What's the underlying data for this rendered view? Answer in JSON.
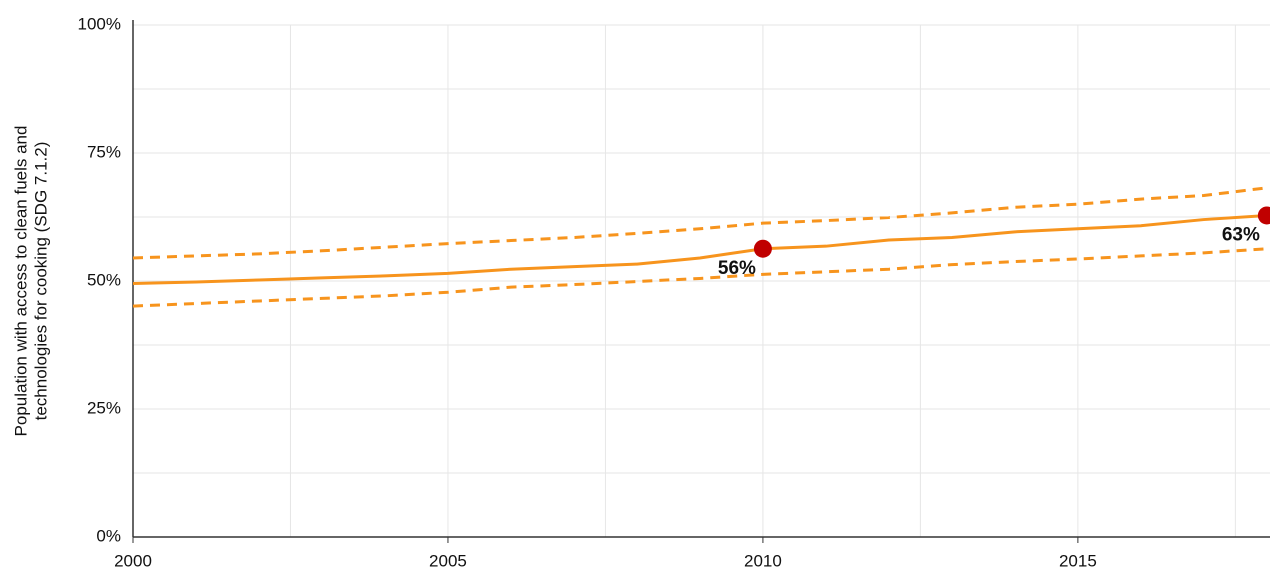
{
  "chart_data": {
    "type": "line",
    "y_label": [
      "Population with access to clean fuels and",
      "technologies for cooking (SDG 7.1.2)"
    ],
    "x": [
      2000,
      2001,
      2002,
      2003,
      2004,
      2005,
      2006,
      2007,
      2008,
      2009,
      2010,
      2011,
      2012,
      2013,
      2014,
      2015,
      2016,
      2017,
      2018
    ],
    "series": [
      {
        "color": "#f7941d",
        "dash": false,
        "values": [
          49.5,
          49.8,
          50.2,
          50.6,
          51.0,
          51.5,
          52.3,
          52.8,
          53.3,
          54.5,
          56.3,
          56.8,
          58.0,
          58.5,
          59.6,
          60.2,
          60.8,
          62.0,
          62.8
        ]
      },
      {
        "color": "#f7941d",
        "dash": true,
        "values": [
          54.5,
          54.9,
          55.3,
          55.9,
          56.6,
          57.3,
          57.9,
          58.5,
          59.3,
          60.2,
          61.3,
          61.8,
          62.4,
          63.3,
          64.4,
          65.0,
          66.0,
          66.7,
          68.2
        ]
      },
      {
        "color": "#f7941d",
        "dash": true,
        "values": [
          45.1,
          45.6,
          46.1,
          46.6,
          47.1,
          47.8,
          48.8,
          49.3,
          49.9,
          50.5,
          51.3,
          51.8,
          52.3,
          53.2,
          53.8,
          54.3,
          54.9,
          55.5,
          56.3
        ]
      }
    ],
    "highlights": [
      {
        "x": 2010,
        "value": 56.3,
        "label": "56%"
      },
      {
        "x": 2018,
        "value": 62.8,
        "label": "63%"
      }
    ],
    "highlight_color": "#c00000",
    "xlim": [
      2000,
      2018.05
    ],
    "ylim": [
      0,
      100
    ],
    "xticks": [
      2000,
      2005,
      2010,
      2015
    ],
    "yticks": [
      {
        "value": 0,
        "label": "0%"
      },
      {
        "value": 25,
        "label": "25%"
      },
      {
        "value": 50,
        "label": "50%"
      },
      {
        "value": 75,
        "label": "75%"
      },
      {
        "value": 100,
        "label": "100%"
      }
    ],
    "xgrid": [
      2002.5,
      2005,
      2007.5,
      2010,
      2012.5,
      2015,
      2017.5
    ],
    "ygrid": [
      12.5,
      25,
      37.5,
      50,
      62.5,
      75,
      87.5,
      100
    ],
    "grid": true
  }
}
